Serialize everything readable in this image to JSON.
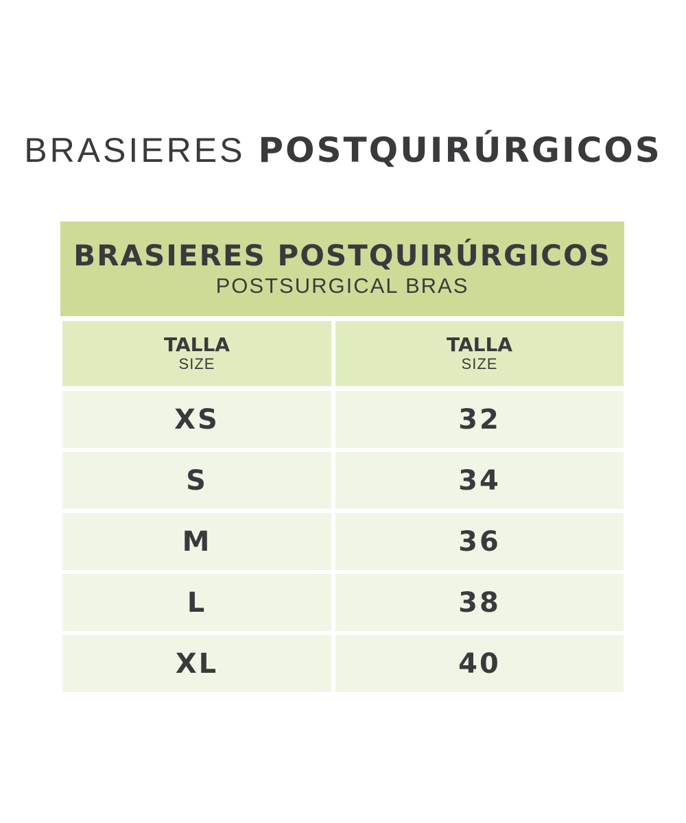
{
  "title": {
    "light": "BRASIERES",
    "bold": "POSTQUIRÚRGICOS"
  },
  "table": {
    "header_title": "BRASIERES POSTQUIRÚRGICOS",
    "header_subtitle": "POSTSURGICAL BRAS",
    "columns": [
      {
        "label": "TALLA",
        "sublabel": "SIZE"
      },
      {
        "label": "TALLA",
        "sublabel": "SIZE"
      }
    ],
    "rows": [
      [
        "XS",
        "32"
      ],
      [
        "S",
        "34"
      ],
      [
        "M",
        "36"
      ],
      [
        "L",
        "38"
      ],
      [
        "XL",
        "40"
      ]
    ]
  },
  "colors": {
    "header": "#cddb97",
    "column_header": "#e0ecc0",
    "row": "#f0f6e6",
    "text": "#3a3a3d"
  }
}
